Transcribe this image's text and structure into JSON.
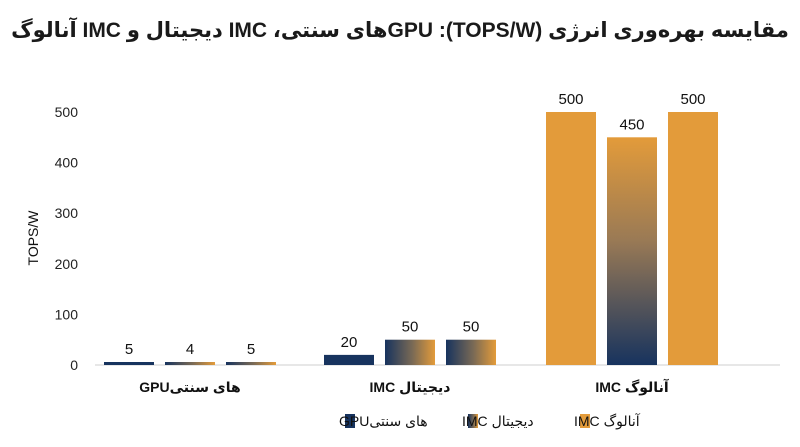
{
  "chart_data": {
    "type": "bar",
    "title": "مقایسه بهره‌وری انرژی (TOPS/W): GPUهای سنتی، IMC دیجیتال و IMC آنالوگ",
    "ylabel": "TOPS/W",
    "xlabel": "",
    "ylim": [
      0,
      500
    ],
    "yticks": [
      "0",
      "100",
      "200",
      "300",
      "400",
      "500"
    ],
    "grid": false,
    "legend_position": "bottom",
    "categories": [
      "GPUهای سنتی",
      "IMC دیجیتال",
      "IMC آنالوگ"
    ],
    "series": [
      {
        "name": "GPUهای سنتی",
        "color": "#17335e",
        "values": [
          5,
          20,
          500
        ]
      },
      {
        "name": "IMC دیجیتال",
        "color": "gradient:#17335e-#e39b3a",
        "values": [
          4,
          50,
          450
        ]
      },
      {
        "name": "IMC آنالوگ",
        "color": "#e39b3a",
        "values": [
          5,
          50,
          500
        ]
      }
    ],
    "data_labels": [
      [
        "5",
        "4",
        "5"
      ],
      [
        "20",
        "50",
        "50"
      ],
      [
        "500",
        "450",
        "500"
      ]
    ]
  },
  "colors": {
    "navy": "#17335e",
    "orange": "#e39b3a"
  }
}
